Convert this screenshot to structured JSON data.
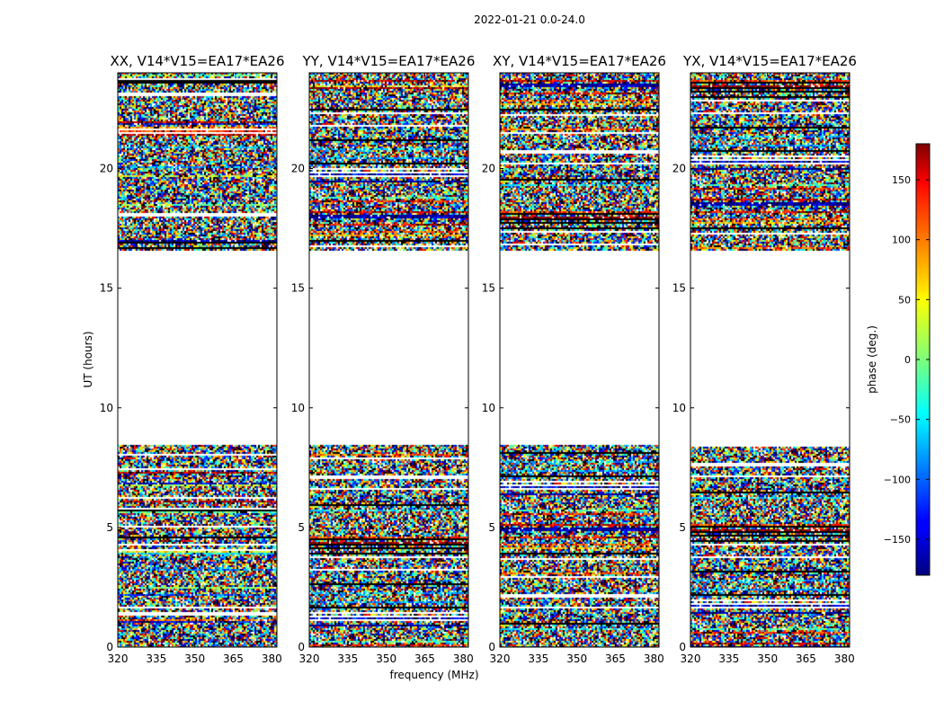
{
  "suptitle": "2022-01-21 0.0-24.0",
  "chart_data": {
    "type": "heatmap",
    "xlabel": "frequency (MHz)",
    "ylabel": "UT (hours)",
    "xlim": [
      320,
      382
    ],
    "ylim": [
      0,
      24
    ],
    "xticks": [
      "320",
      "335",
      "350",
      "365",
      "380"
    ],
    "yticks": [
      "0",
      "5",
      "10",
      "15",
      "20"
    ],
    "colorbar": {
      "label": "phase (deg.)",
      "range": [
        -180,
        180
      ],
      "ticks": [
        "150",
        "100",
        "50",
        "0",
        "−50",
        "−100",
        "−150"
      ],
      "colormap": "jet"
    },
    "flagged_ut_range": [
      8.5,
      16.6
    ],
    "panels": [
      {
        "title": "XX, V14*V15=EA17*EA26"
      },
      {
        "title": "YY, V14*V15=EA17*EA26"
      },
      {
        "title": "XY, V14*V15=EA17*EA26"
      },
      {
        "title": "YX, V14*V15=EA17*EA26"
      }
    ]
  }
}
